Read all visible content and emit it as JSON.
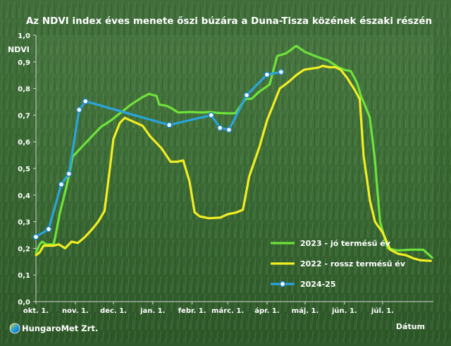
{
  "chart_data": {
    "type": "line",
    "title": "Az NDVI index éves menete őszi búzára a Duna-Tisza közének északi részén",
    "ylabel": "NDVI",
    "xlabel": "Dátum",
    "ylim": [
      0,
      1
    ],
    "yticks": [
      "0,0",
      "0,1",
      "0,2",
      "0,3",
      "0,4",
      "0,5",
      "0,6",
      "0,7",
      "0,8",
      "0,9",
      "1,0"
    ],
    "x_axis": "day of season, 0 = okt. 1.",
    "xlim": [
      0,
      313
    ],
    "xticks": [
      {
        "label": "okt. 1.",
        "day": 0
      },
      {
        "label": "nov. 1.",
        "day": 31
      },
      {
        "label": "dec. 1.",
        "day": 61
      },
      {
        "label": "jan. 1.",
        "day": 92
      },
      {
        "label": "febr. 1.",
        "day": 123
      },
      {
        "label": "márc. 1.",
        "day": 151
      },
      {
        "label": "ápr. 1.",
        "day": 182
      },
      {
        "label": "máj. 1.",
        "day": 212
      },
      {
        "label": "jún. 1.",
        "day": 243
      },
      {
        "label": "júl. 1.",
        "day": 273
      }
    ],
    "series": [
      {
        "name": "2023 - jó termésű év",
        "color": "#6ee23a",
        "markers": false,
        "points": [
          [
            0,
            0.185
          ],
          [
            3,
            0.215
          ],
          [
            5,
            0.225
          ],
          [
            8,
            0.215
          ],
          [
            14,
            0.215
          ],
          [
            19,
            0.335
          ],
          [
            24,
            0.43
          ],
          [
            29,
            0.545
          ],
          [
            37,
            0.585
          ],
          [
            44,
            0.62
          ],
          [
            51,
            0.655
          ],
          [
            59,
            0.68
          ],
          [
            67,
            0.71
          ],
          [
            75,
            0.74
          ],
          [
            83,
            0.765
          ],
          [
            89,
            0.78
          ],
          [
            95,
            0.772
          ],
          [
            97,
            0.74
          ],
          [
            103,
            0.735
          ],
          [
            107,
            0.725
          ],
          [
            112,
            0.71
          ],
          [
            122,
            0.712
          ],
          [
            131,
            0.71
          ],
          [
            137,
            0.712
          ],
          [
            144,
            0.708
          ],
          [
            151,
            0.707
          ],
          [
            157,
            0.707
          ],
          [
            165,
            0.76
          ],
          [
            170,
            0.762
          ],
          [
            175,
            0.785
          ],
          [
            184,
            0.815
          ],
          [
            190,
            0.922
          ],
          [
            197,
            0.932
          ],
          [
            205,
            0.96
          ],
          [
            212,
            0.937
          ],
          [
            222,
            0.918
          ],
          [
            230,
            0.905
          ],
          [
            238,
            0.88
          ],
          [
            243,
            0.87
          ],
          [
            248,
            0.865
          ],
          [
            253,
            0.82
          ],
          [
            256,
            0.77
          ],
          [
            258,
            0.75
          ],
          [
            263,
            0.69
          ],
          [
            267,
            0.53
          ],
          [
            271,
            0.3
          ],
          [
            277,
            0.2
          ],
          [
            285,
            0.192
          ],
          [
            295,
            0.195
          ],
          [
            305,
            0.195
          ],
          [
            312,
            0.165
          ]
        ]
      },
      {
        "name": "2022 - rossz termésű év",
        "color": "#f2ee22",
        "markers": false,
        "points": [
          [
            0,
            0.175
          ],
          [
            3,
            0.185
          ],
          [
            6,
            0.21
          ],
          [
            10,
            0.21
          ],
          [
            14,
            0.21
          ],
          [
            18,
            0.215
          ],
          [
            23,
            0.2
          ],
          [
            28,
            0.225
          ],
          [
            33,
            0.22
          ],
          [
            38,
            0.24
          ],
          [
            44,
            0.27
          ],
          [
            49,
            0.3
          ],
          [
            54,
            0.34
          ],
          [
            58,
            0.49
          ],
          [
            61,
            0.61
          ],
          [
            66,
            0.67
          ],
          [
            70,
            0.69
          ],
          [
            77,
            0.675
          ],
          [
            84,
            0.66
          ],
          [
            90,
            0.62
          ],
          [
            99,
            0.575
          ],
          [
            106,
            0.525
          ],
          [
            111,
            0.525
          ],
          [
            116,
            0.53
          ],
          [
            121,
            0.45
          ],
          [
            125,
            0.335
          ],
          [
            129,
            0.32
          ],
          [
            136,
            0.313
          ],
          [
            145,
            0.315
          ],
          [
            151,
            0.328
          ],
          [
            158,
            0.335
          ],
          [
            163,
            0.345
          ],
          [
            168,
            0.47
          ],
          [
            176,
            0.58
          ],
          [
            182,
            0.68
          ],
          [
            187,
            0.74
          ],
          [
            192,
            0.8
          ],
          [
            199,
            0.825
          ],
          [
            205,
            0.85
          ],
          [
            211,
            0.87
          ],
          [
            217,
            0.875
          ],
          [
            222,
            0.878
          ],
          [
            226,
            0.885
          ],
          [
            231,
            0.88
          ],
          [
            236,
            0.88
          ],
          [
            240,
            0.87
          ],
          [
            245,
            0.84
          ],
          [
            251,
            0.795
          ],
          [
            255,
            0.76
          ],
          [
            258,
            0.55
          ],
          [
            263,
            0.38
          ],
          [
            267,
            0.3
          ],
          [
            273,
            0.26
          ],
          [
            279,
            0.195
          ],
          [
            285,
            0.18
          ],
          [
            291,
            0.175
          ],
          [
            297,
            0.163
          ],
          [
            303,
            0.155
          ],
          [
            311,
            0.153
          ]
        ]
      },
      {
        "name": "2024-25",
        "color": "#2aa4dc",
        "markers": true,
        "points": [
          [
            0,
            0.243
          ],
          [
            10,
            0.272
          ],
          [
            20,
            0.44
          ],
          [
            26,
            0.48
          ],
          [
            34,
            0.72
          ],
          [
            39,
            0.752
          ],
          [
            105,
            0.663
          ],
          [
            138,
            0.7
          ],
          [
            145,
            0.652
          ],
          [
            152,
            0.645
          ],
          [
            166,
            0.775
          ],
          [
            182,
            0.852
          ],
          [
            193,
            0.862
          ]
        ]
      }
    ],
    "legend_position": "right-bottom",
    "grid": false,
    "logo_text": "HungaroMet Zrt."
  }
}
